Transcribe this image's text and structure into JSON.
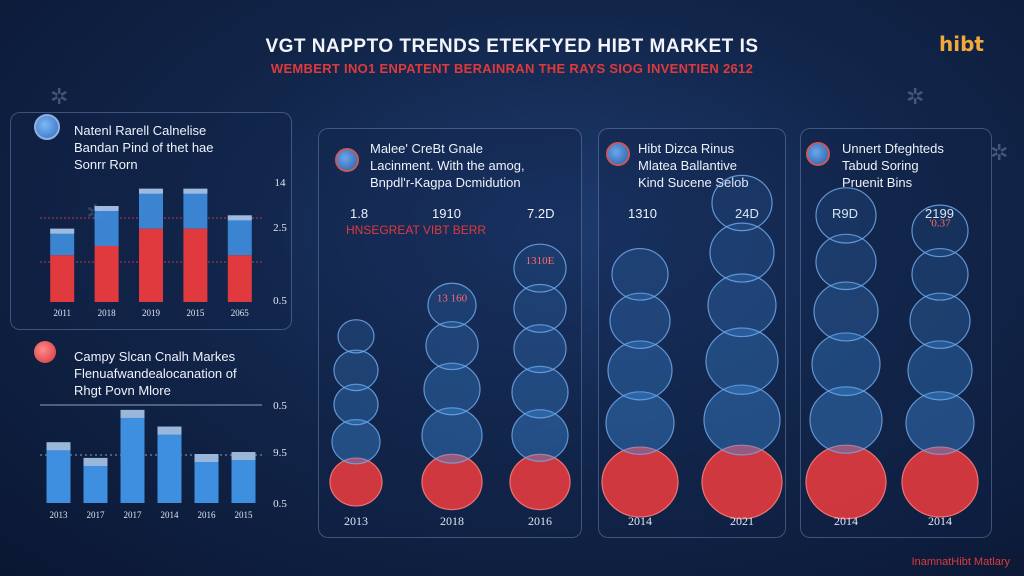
{
  "header": {
    "title": "VGT NAPPTO TRENDS ETEKFYED HIBT MARKET IS",
    "subtitle": "WEMBERT INO1 ENPATENT BERAINRAN THE RAYS SIOG INVENTIEN 2612",
    "logo": "hibt",
    "footer": "InamnatHibt Matlary"
  },
  "colors": {
    "red": "#e03a3f",
    "blue": "#3f8fe0",
    "bg": "#0f2146"
  },
  "panels": {
    "p1": {
      "title": [
        "Natenl Rarell Calnelise",
        "Bandan Pind of thet hae",
        "Sonrr Rorn"
      ]
    },
    "p2": {
      "title": [
        "Campy Slcan Cnalh Markes",
        "Flenuafwandealocanation of",
        "Rhgt Povn Mlore"
      ]
    },
    "p3": {
      "title": [
        "Malee' CreBt Gnale",
        "Lacinment. With the amog,",
        "Bnpdl'r-Kagpa Dcmidution"
      ],
      "values": [
        "1.8",
        "1910",
        "7.2D"
      ],
      "note": "HNSEGREAT VIBT BERR"
    },
    "p4": {
      "title": [
        "Hibt Dizca Rinus",
        "Mlatea Ballantive",
        "Kind Sucene Selob"
      ],
      "values": [
        "1310",
        "24D"
      ]
    },
    "p5": {
      "title": [
        "Unnert Dfeghteds",
        "Tabud Soring",
        "Pruenit Bins"
      ],
      "values": [
        "R9D",
        "2199"
      ]
    }
  },
  "chart_data": [
    {
      "type": "bar",
      "categories": [
        "2011",
        "2018",
        "2019",
        "2015",
        "2065"
      ],
      "y_tick_labels": [
        "14",
        "2.5",
        "0.5"
      ],
      "series": [
        {
          "values": [
            0.35,
            0.42,
            0.55,
            0.55,
            0.35
          ]
        },
        {
          "values": [
            0.2,
            0.3,
            0.3,
            0.3,
            0.3
          ]
        }
      ]
    },
    {
      "type": "bar",
      "categories": [
        "2013",
        "2017",
        "2017",
        "2014",
        "2016",
        "2015"
      ],
      "y_tick_labels": [
        "0.5",
        "9.5",
        "0.5"
      ],
      "series": [
        {
          "values": [
            0.62,
            0.46,
            0.95,
            0.78,
            0.5,
            0.52
          ]
        }
      ]
    },
    {
      "type": "bubble",
      "categories": [
        "2013",
        "2018",
        "2016"
      ],
      "labels": [
        "",
        "13 160",
        "1310E"
      ]
    },
    {
      "type": "bubble",
      "categories": [
        "2014",
        "2021"
      ]
    },
    {
      "type": "bubble",
      "categories": [
        "2014",
        "2014"
      ],
      "labels": [
        "",
        "'0.37"
      ]
    }
  ]
}
